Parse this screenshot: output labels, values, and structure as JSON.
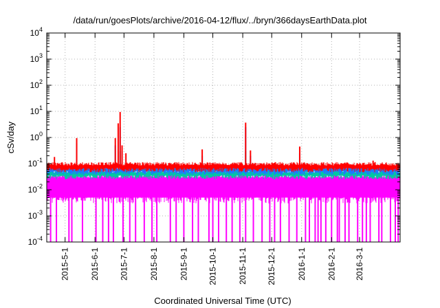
{
  "chart_data": {
    "type": "line",
    "title": "/data/run/goesPlots/archive/2016-04-12/flux/../bryn/366daysEarthData.plot",
    "xlabel": "Coordinated Universal Time (UTC)",
    "ylabel": "cSv/day",
    "yscale": "log",
    "ylim": [
      0.0001,
      10000
    ],
    "y_ticks": [
      {
        "value": 0.0001,
        "base": "10",
        "exp": "-4"
      },
      {
        "value": 0.001,
        "base": "10",
        "exp": "-3"
      },
      {
        "value": 0.01,
        "base": "10",
        "exp": "-2"
      },
      {
        "value": 0.1,
        "base": "10",
        "exp": "-1"
      },
      {
        "value": 1,
        "base": "10",
        "exp": "0"
      },
      {
        "value": 10,
        "base": "10",
        "exp": "1"
      },
      {
        "value": 100,
        "base": "10",
        "exp": "2"
      },
      {
        "value": 1000,
        "base": "10",
        "exp": "3"
      },
      {
        "value": 10000,
        "base": "10",
        "exp": "4"
      }
    ],
    "xlim": [
      "2015-04-12",
      "2016-04-12"
    ],
    "x_ticks": [
      {
        "label": "2015-5-1",
        "date": "2015-05-01"
      },
      {
        "label": "2015-6-1",
        "date": "2015-06-01"
      },
      {
        "label": "2015-7-1",
        "date": "2015-07-01"
      },
      {
        "label": "2015-8-1",
        "date": "2015-08-01"
      },
      {
        "label": "2015-9-1",
        "date": "2015-09-01"
      },
      {
        "label": "2015-10-1",
        "date": "2015-10-01"
      },
      {
        "label": "2015-11-1",
        "date": "2015-11-01"
      },
      {
        "label": "2015-12-1",
        "date": "2015-12-01"
      },
      {
        "label": "2016-1-1",
        "date": "2016-01-01"
      },
      {
        "label": "2016-2-1",
        "date": "2016-02-01"
      },
      {
        "label": "2016-3-1",
        "date": "2016-03-01"
      }
    ],
    "grid": true,
    "series": [
      {
        "color": "#ff0000",
        "baseline": 0.085,
        "spikes": [
          {
            "date": "2015-04-20",
            "value": 0.18
          },
          {
            "date": "2015-05-13",
            "value": 0.95
          },
          {
            "date": "2015-06-22",
            "value": 0.95
          },
          {
            "date": "2015-06-25",
            "value": 3.5
          },
          {
            "date": "2015-06-27",
            "value": 9.5
          },
          {
            "date": "2015-06-29",
            "value": 0.5
          },
          {
            "date": "2015-07-03",
            "value": 0.25
          },
          {
            "date": "2015-09-20",
            "value": 0.35
          },
          {
            "date": "2015-11-04",
            "value": 3.7
          },
          {
            "date": "2015-11-09",
            "value": 0.32
          },
          {
            "date": "2015-12-30",
            "value": 0.45
          },
          {
            "date": "2016-03-15",
            "value": 0.13
          }
        ]
      },
      {
        "color": "#1e78ff",
        "baseline": 0.065,
        "spikes": [
          {
            "date": "2015-05-13",
            "value": 0.6
          },
          {
            "date": "2015-06-22",
            "value": 0.5
          },
          {
            "date": "2015-06-27",
            "value": 2.5
          },
          {
            "date": "2015-06-29",
            "value": 0.3
          },
          {
            "date": "2015-09-20",
            "value": 0.2
          },
          {
            "date": "2015-11-04",
            "value": 2.5
          },
          {
            "date": "2015-11-09",
            "value": 0.2
          },
          {
            "date": "2015-12-30",
            "value": 0.25
          }
        ]
      },
      {
        "color": "#00c8a0",
        "baseline": 0.045,
        "spikes": [
          {
            "date": "2015-06-27",
            "value": 0.3
          },
          {
            "date": "2015-11-04",
            "value": 0.3
          }
        ]
      },
      {
        "color": "#ff00ff",
        "baseline": 0.03,
        "floor": 0.005,
        "dropouts_to": 0.0001,
        "dropout_dates": [
          "2015-04-16",
          "2015-04-22",
          "2015-05-05",
          "2015-05-08",
          "2015-05-19",
          "2015-06-02",
          "2015-06-09",
          "2015-06-15",
          "2015-06-20",
          "2015-06-30",
          "2015-07-07",
          "2015-07-13",
          "2015-07-22",
          "2015-07-30",
          "2015-08-04",
          "2015-08-18",
          "2015-08-24",
          "2015-09-01",
          "2015-09-10",
          "2015-09-16",
          "2015-09-27",
          "2015-10-01",
          "2015-10-07",
          "2015-10-15",
          "2015-10-21",
          "2015-10-29",
          "2015-11-04",
          "2015-11-12",
          "2015-11-21",
          "2015-11-29",
          "2015-12-04",
          "2015-12-10",
          "2015-12-19",
          "2015-12-27",
          "2016-01-05",
          "2016-01-09",
          "2016-01-15",
          "2016-01-18",
          "2016-01-21",
          "2016-01-26",
          "2016-02-01",
          "2016-02-07",
          "2016-02-09",
          "2016-02-15",
          "2016-02-19",
          "2016-02-28",
          "2016-03-04",
          "2016-03-08",
          "2016-03-12",
          "2016-03-21",
          "2016-03-24",
          "2016-04-02",
          "2016-04-07",
          "2016-04-10"
        ]
      }
    ]
  }
}
